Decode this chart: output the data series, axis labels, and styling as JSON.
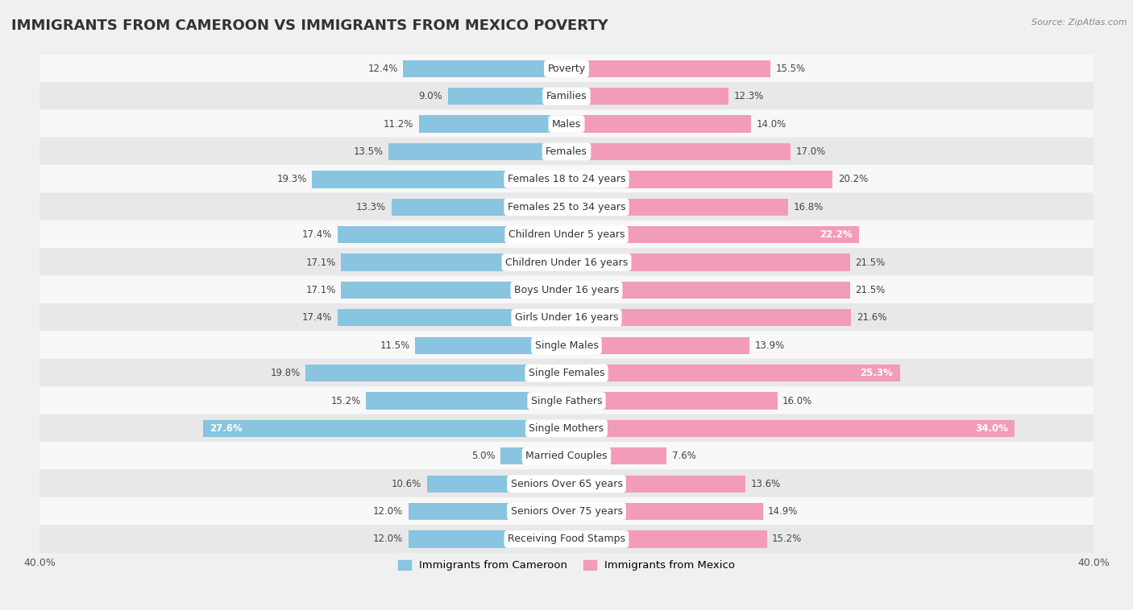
{
  "title": "IMMIGRANTS FROM CAMEROON VS IMMIGRANTS FROM MEXICO POVERTY",
  "source": "Source: ZipAtlas.com",
  "categories": [
    "Poverty",
    "Families",
    "Males",
    "Females",
    "Females 18 to 24 years",
    "Females 25 to 34 years",
    "Children Under 5 years",
    "Children Under 16 years",
    "Boys Under 16 years",
    "Girls Under 16 years",
    "Single Males",
    "Single Females",
    "Single Fathers",
    "Single Mothers",
    "Married Couples",
    "Seniors Over 65 years",
    "Seniors Over 75 years",
    "Receiving Food Stamps"
  ],
  "cameroon_values": [
    12.4,
    9.0,
    11.2,
    13.5,
    19.3,
    13.3,
    17.4,
    17.1,
    17.1,
    17.4,
    11.5,
    19.8,
    15.2,
    27.6,
    5.0,
    10.6,
    12.0,
    12.0
  ],
  "mexico_values": [
    15.5,
    12.3,
    14.0,
    17.0,
    20.2,
    16.8,
    22.2,
    21.5,
    21.5,
    21.6,
    13.9,
    25.3,
    16.0,
    34.0,
    7.6,
    13.6,
    14.9,
    15.2
  ],
  "cameroon_color": "#89C4E1",
  "mexico_color": "#F29CB8",
  "background_color": "#f0f0f0",
  "row_color_light": "#f8f8f8",
  "row_color_dark": "#e8e8e8",
  "axis_limit": 40.0,
  "legend_label_cameroon": "Immigrants from Cameroon",
  "legend_label_mexico": "Immigrants from Mexico",
  "title_fontsize": 13,
  "label_fontsize": 9,
  "value_fontsize": 8.5,
  "inside_label_threshold": 22.0
}
